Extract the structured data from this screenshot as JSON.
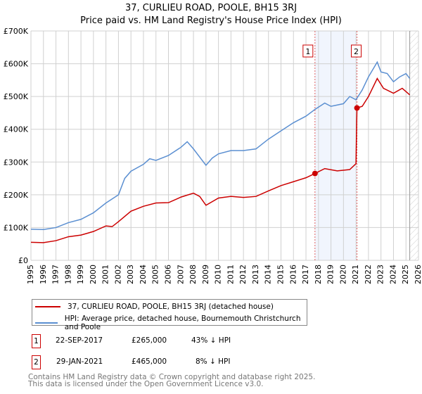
{
  "title": "37, CURLIEU ROAD, POOLE, BH15 3RJ",
  "subtitle": "Price paid vs. HM Land Registry's House Price Index (HPI)",
  "chart_data": {
    "type": "line",
    "xlim": [
      1995,
      2026
    ],
    "ylim": [
      0,
      700000
    ],
    "x_ticks": [
      "1995",
      "1996",
      "1997",
      "1998",
      "1999",
      "2000",
      "2001",
      "2002",
      "2003",
      "2004",
      "2005",
      "2006",
      "2007",
      "2008",
      "2009",
      "2010",
      "2011",
      "2012",
      "2013",
      "2014",
      "2015",
      "2016",
      "2017",
      "2018",
      "2019",
      "2020",
      "2021",
      "2022",
      "2023",
      "2024",
      "2025",
      "2026"
    ],
    "y_ticks": [
      {
        "v": 0,
        "l": "£0"
      },
      {
        "v": 100000,
        "l": "£100K"
      },
      {
        "v": 200000,
        "l": "£200K"
      },
      {
        "v": 300000,
        "l": "£300K"
      },
      {
        "v": 400000,
        "l": "£400K"
      },
      {
        "v": 500000,
        "l": "£500K"
      },
      {
        "v": 600000,
        "l": "£600K"
      },
      {
        "v": 700000,
        "l": "£700K"
      }
    ],
    "grid": true,
    "series": [
      {
        "name": "37, CURLIEU ROAD, POOLE, BH15 3RJ (detached house)",
        "color": "#cc0000",
        "x": [
          1995,
          1996,
          1997,
          1998,
          1999,
          2000,
          2001,
          2001.5,
          2002,
          2003,
          2004,
          2005,
          2006,
          2007,
          2008,
          2008.5,
          2009,
          2010,
          2011,
          2012,
          2013,
          2014,
          2015,
          2016,
          2017,
          2017.72,
          2018.5,
          2019.5,
          2020.5,
          2021.0,
          2021.08,
          2021.5,
          2022,
          2022.7,
          2023.2,
          2024,
          2024.7,
          2025.3
        ],
        "values": [
          55000,
          54000,
          60000,
          72000,
          77000,
          88000,
          105000,
          103000,
          118000,
          150000,
          165000,
          175000,
          176000,
          193000,
          205000,
          195000,
          168000,
          190000,
          195000,
          192000,
          195000,
          212000,
          228000,
          240000,
          252000,
          265000,
          280000,
          273000,
          277000,
          295000,
          465000,
          470000,
          500000,
          555000,
          525000,
          510000,
          525000,
          505000
        ]
      },
      {
        "name": "HPI: Average price, detached house, Bournemouth Christchurch and Poole",
        "color": "#5b8fd1",
        "x": [
          1995,
          1996,
          1997,
          1998,
          1999,
          2000,
          2001,
          2002,
          2002.5,
          2003,
          2004,
          2004.5,
          2005,
          2006,
          2007,
          2007.5,
          2008,
          2009,
          2009.5,
          2010,
          2011,
          2012,
          2013,
          2014,
          2015,
          2016,
          2017,
          2017.7,
          2018.5,
          2019,
          2020,
          2020.5,
          2021,
          2021.5,
          2022,
          2022.7,
          2023,
          2023.5,
          2024,
          2024.5,
          2025,
          2025.3
        ],
        "values": [
          95000,
          94000,
          100000,
          115000,
          125000,
          145000,
          175000,
          200000,
          250000,
          272000,
          293000,
          310000,
          305000,
          320000,
          345000,
          362000,
          340000,
          290000,
          312000,
          325000,
          335000,
          335000,
          340000,
          370000,
          395000,
          420000,
          440000,
          460000,
          480000,
          470000,
          478000,
          500000,
          490000,
          520000,
          560000,
          605000,
          575000,
          570000,
          545000,
          560000,
          570000,
          555000
        ]
      }
    ],
    "sales": [
      {
        "label": "1",
        "x": 2017.72,
        "value": 265000
      },
      {
        "label": "2",
        "x": 2021.08,
        "value": 465000
      }
    ]
  },
  "legend": [
    "37, CURLIEU ROAD, POOLE, BH15 3RJ (detached house)",
    "HPI: Average price, detached house, Bournemouth Christchurch and Poole"
  ],
  "transactions": [
    {
      "n": "1",
      "date": "22-SEP-2017",
      "price": "£265,000",
      "delta": "43% ↓ HPI"
    },
    {
      "n": "2",
      "date": "29-JAN-2021",
      "price": "£465,000",
      "delta": "8% ↓ HPI"
    }
  ],
  "footer": [
    "Contains HM Land Registry data © Crown copyright and database right 2025.",
    "This data is licensed under the Open Government Licence v3.0."
  ]
}
